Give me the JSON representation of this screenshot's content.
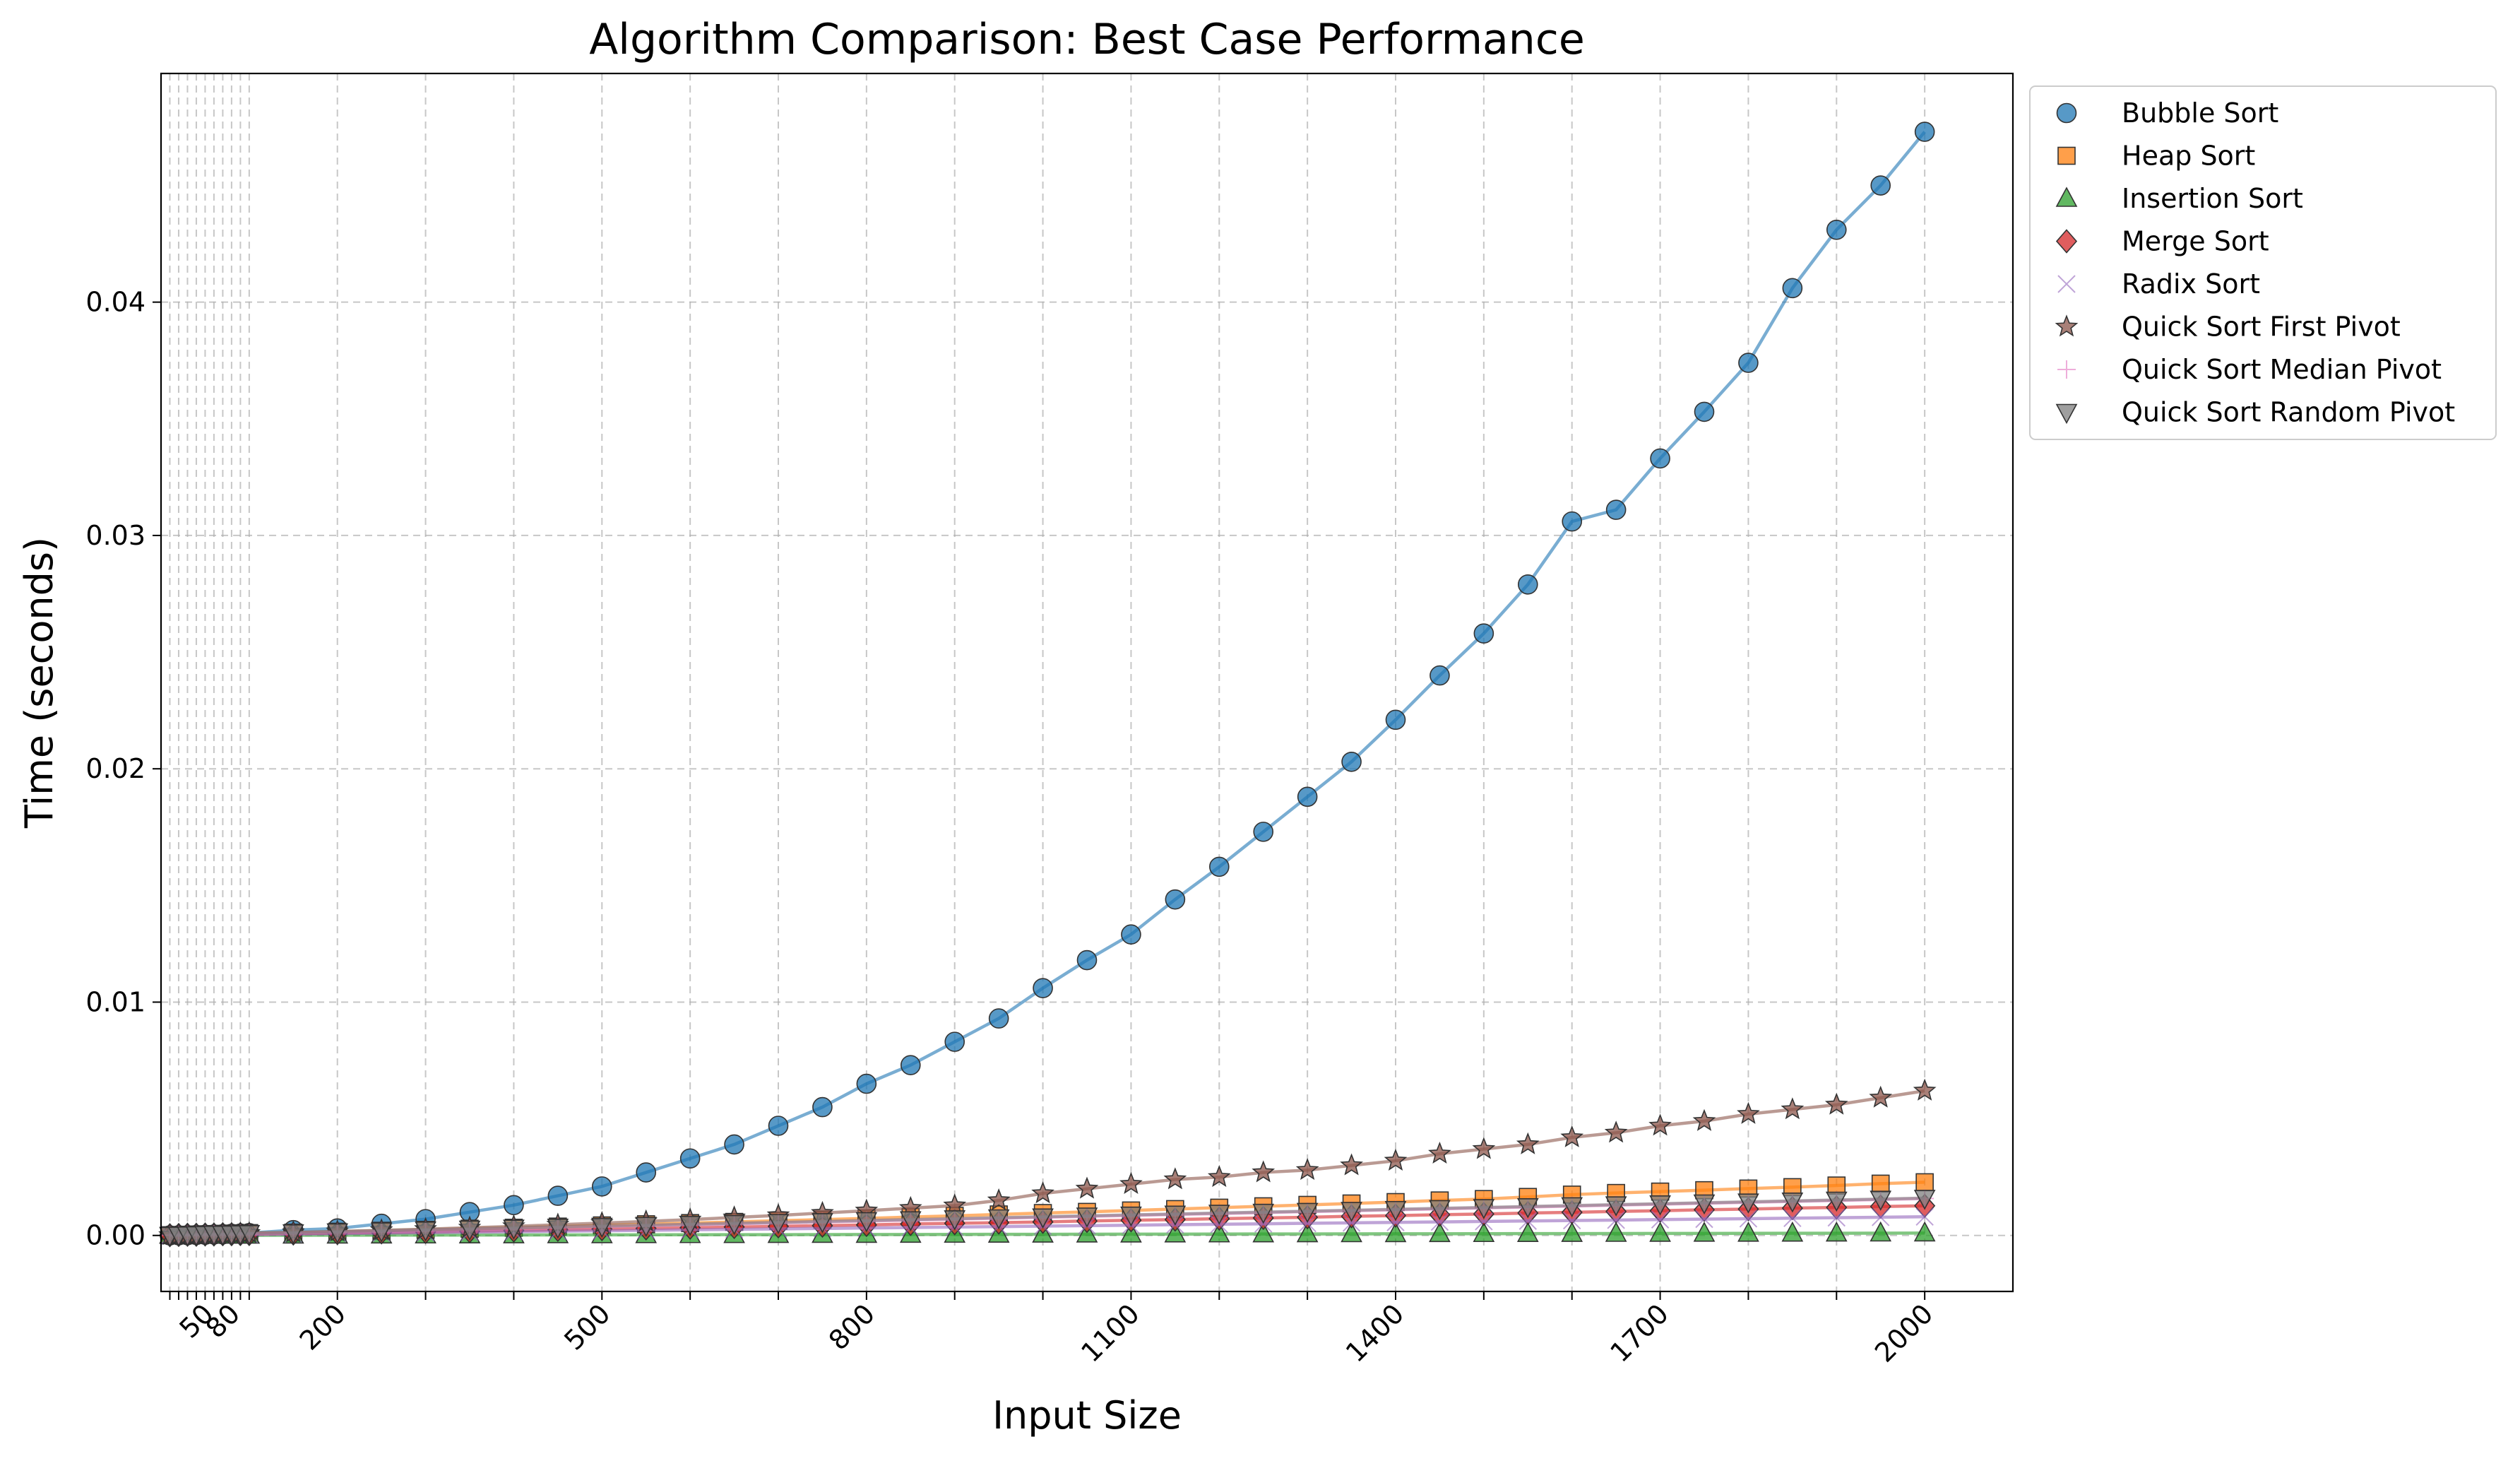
{
  "chart_data": {
    "type": "line",
    "title": "Algorithm Comparison: Best Case Performance",
    "xlabel": "Input Size",
    "ylabel": "Time (seconds)",
    "xlim": [
      0,
      2100
    ],
    "ylim": [
      -0.0024,
      0.0498
    ],
    "grid": true,
    "legend_position": "outside-top-right",
    "x_ticks": [
      10,
      20,
      30,
      40,
      50,
      60,
      70,
      80,
      90,
      100,
      200,
      300,
      400,
      500,
      600,
      700,
      800,
      900,
      1000,
      1100,
      1200,
      1300,
      1400,
      1500,
      1600,
      1700,
      1800,
      1900,
      2000
    ],
    "x_tick_labels": [
      "",
      "",
      "",
      "",
      "50",
      "",
      "",
      "80",
      "",
      "",
      "200",
      "",
      "",
      "500",
      "",
      "",
      "800",
      "",
      "",
      "1100",
      "",
      "",
      "1400",
      "",
      "",
      "1700",
      "",
      "",
      "2000"
    ],
    "y_ticks": [
      0.0,
      0.01,
      0.02,
      0.03,
      0.04
    ],
    "y_tick_labels": [
      "0.00",
      "0.01",
      "0.02",
      "0.03",
      "0.04"
    ],
    "x": [
      10,
      20,
      30,
      40,
      50,
      60,
      70,
      80,
      90,
      100,
      150,
      200,
      250,
      300,
      350,
      400,
      450,
      500,
      550,
      600,
      650,
      700,
      750,
      800,
      850,
      900,
      950,
      1000,
      1050,
      1100,
      1150,
      1200,
      1250,
      1300,
      1350,
      1400,
      1450,
      1500,
      1550,
      1600,
      1650,
      1700,
      1750,
      1800,
      1850,
      1900,
      1950,
      2000
    ],
    "series": [
      {
        "name": "Bubble Sort",
        "color": "#1f77b4",
        "marker": "circle",
        "values": [
          2e-06,
          5e-06,
          1e-05,
          2e-05,
          3e-05,
          4e-05,
          5e-05,
          7e-05,
          8e-05,
          0.0001,
          0.00023,
          0.0003,
          0.0005,
          0.0007,
          0.001,
          0.0013,
          0.0017,
          0.0021,
          0.0027,
          0.0033,
          0.0039,
          0.0047,
          0.0055,
          0.0065,
          0.0073,
          0.0083,
          0.0093,
          0.0106,
          0.0118,
          0.0129,
          0.0144,
          0.0158,
          0.0173,
          0.0188,
          0.0203,
          0.0221,
          0.024,
          0.0258,
          0.0279,
          0.0306,
          0.0311,
          0.0333,
          0.0353,
          0.0374,
          0.0406,
          0.0431,
          0.045,
          0.0473
        ]
      },
      {
        "name": "Heap Sort",
        "color": "#ff7f0e",
        "marker": "square",
        "values": [
          1e-05,
          2e-05,
          3e-05,
          4e-05,
          5e-05,
          6e-05,
          7e-05,
          8e-05,
          9e-05,
          0.0001,
          0.00012,
          0.00016,
          0.0002,
          0.00024,
          0.00029,
          0.00033,
          0.00038,
          0.00043,
          0.00048,
          0.00053,
          0.00058,
          0.00063,
          0.00068,
          0.00073,
          0.00079,
          0.00084,
          0.0009,
          0.00096,
          0.00101,
          0.00107,
          0.00113,
          0.00119,
          0.00125,
          0.00131,
          0.00137,
          0.00143,
          0.0015,
          0.00156,
          0.00165,
          0.00175,
          0.00182,
          0.00188,
          0.00194,
          0.00201,
          0.00207,
          0.00214,
          0.00222,
          0.00228
        ]
      },
      {
        "name": "Insertion Sort",
        "color": "#2ca02c",
        "marker": "triangle-up",
        "values": [
          5e-07,
          1e-06,
          1.5e-06,
          2e-06,
          2.5e-06,
          3e-06,
          3.5e-06,
          4e-06,
          4.5e-06,
          5e-06,
          8e-06,
          1e-05,
          1.3e-05,
          1.5e-05,
          1.8e-05,
          2e-05,
          2.3e-05,
          2.5e-05,
          2.8e-05,
          3e-05,
          3.3e-05,
          3.5e-05,
          3.8e-05,
          4e-05,
          4.3e-05,
          4.5e-05,
          4.8e-05,
          5e-05,
          5.3e-05,
          5.5e-05,
          5.8e-05,
          6e-05,
          6.3e-05,
          6.5e-05,
          6.8e-05,
          7e-05,
          7.3e-05,
          7.5e-05,
          7.8e-05,
          8e-05,
          8.3e-05,
          8.5e-05,
          8.8e-05,
          9e-05,
          9.3e-05,
          9.5e-05,
          9.8e-05,
          0.0001
        ]
      },
      {
        "name": "Merge Sort",
        "color": "#d62728",
        "marker": "diamond",
        "values": [
          1e-05,
          2e-05,
          3e-05,
          3e-05,
          4e-05,
          4e-05,
          5e-05,
          5e-05,
          6e-05,
          6e-05,
          8e-05,
          0.0001,
          0.00013,
          0.00015,
          0.00018,
          0.00021,
          0.00024,
          0.00027,
          0.0003,
          0.00033,
          0.00036,
          0.00039,
          0.00042,
          0.00045,
          0.00049,
          0.00052,
          0.00055,
          0.00058,
          0.00062,
          0.00065,
          0.00068,
          0.00072,
          0.00075,
          0.00078,
          0.00082,
          0.00085,
          0.00089,
          0.00092,
          0.00096,
          0.00099,
          0.00103,
          0.00106,
          0.0011,
          0.00113,
          0.00117,
          0.0012,
          0.00124,
          0.00127
        ]
      },
      {
        "name": "Radix Sort",
        "color": "#9467bd",
        "marker": "x",
        "values": [
          1e-05,
          1e-05,
          2e-05,
          2e-05,
          3e-05,
          3e-05,
          3e-05,
          4e-05,
          4e-05,
          4e-05,
          6e-05,
          8e-05,
          0.0001,
          0.00012,
          0.00014,
          0.00016,
          0.00018,
          0.0002,
          0.00022,
          0.00024,
          0.00026,
          0.00028,
          0.0003,
          0.00032,
          0.00034,
          0.00036,
          0.00038,
          0.0004,
          0.00042,
          0.00044,
          0.00046,
          0.00048,
          0.0005,
          0.00052,
          0.00054,
          0.00056,
          0.00058,
          0.0006,
          0.00062,
          0.00064,
          0.00066,
          0.00068,
          0.0007,
          0.00072,
          0.00074,
          0.00076,
          0.00078,
          0.0008
        ]
      },
      {
        "name": "Quick Sort First Pivot",
        "color": "#8c564b",
        "marker": "star",
        "values": [
          1e-05,
          2e-05,
          3e-05,
          4e-05,
          5e-05,
          6e-05,
          7e-05,
          8e-05,
          9e-05,
          0.0001,
          0.00013,
          0.00017,
          0.00022,
          0.00027,
          0.00033,
          0.00039,
          0.00046,
          0.00053,
          0.0006,
          0.00068,
          0.00077,
          0.00086,
          0.00096,
          0.00106,
          0.00117,
          0.00128,
          0.0015,
          0.0018,
          0.002,
          0.0022,
          0.0024,
          0.0025,
          0.0027,
          0.0028,
          0.003,
          0.0032,
          0.0035,
          0.0037,
          0.0039,
          0.0042,
          0.0044,
          0.0047,
          0.0049,
          0.0052,
          0.0054,
          0.0056,
          0.0059,
          0.0062
        ]
      },
      {
        "name": "Quick Sort Median Pivot",
        "color": "#e377c2",
        "marker": "plus",
        "values": [
          1e-05,
          2e-05,
          3e-05,
          3e-05,
          4e-05,
          5e-05,
          5e-05,
          6e-05,
          7e-05,
          7e-05,
          0.0001,
          0.00014,
          0.00018,
          0.00022,
          0.00026,
          0.0003,
          0.00034,
          0.00038,
          0.00042,
          0.00046,
          0.0005,
          0.00054,
          0.00058,
          0.00062,
          0.00066,
          0.0007,
          0.00074,
          0.00078,
          0.00082,
          0.00086,
          0.0009,
          0.00094,
          0.00098,
          0.00102,
          0.00106,
          0.0011,
          0.00114,
          0.00118,
          0.00122,
          0.00126,
          0.0013,
          0.00134,
          0.00138,
          0.00142,
          0.00146,
          0.0015,
          0.00154,
          0.00158
        ]
      },
      {
        "name": "Quick Sort Random Pivot",
        "color": "#7f7f7f",
        "marker": "triangle-down",
        "values": [
          1e-05,
          2e-05,
          3e-05,
          4e-05,
          5e-05,
          6e-05,
          6e-05,
          7e-05,
          8e-05,
          9e-05,
          0.00012,
          0.00016,
          0.0002,
          0.00024,
          0.00028,
          0.00032,
          0.00036,
          0.0004,
          0.00044,
          0.00048,
          0.00052,
          0.00056,
          0.0006,
          0.00064,
          0.00068,
          0.00072,
          0.00076,
          0.0008,
          0.00084,
          0.00088,
          0.00092,
          0.00096,
          0.001,
          0.00104,
          0.00108,
          0.00112,
          0.00116,
          0.0012,
          0.00124,
          0.00128,
          0.00132,
          0.00136,
          0.0014,
          0.00144,
          0.00148,
          0.00152,
          0.00156,
          0.0016
        ]
      }
    ]
  }
}
